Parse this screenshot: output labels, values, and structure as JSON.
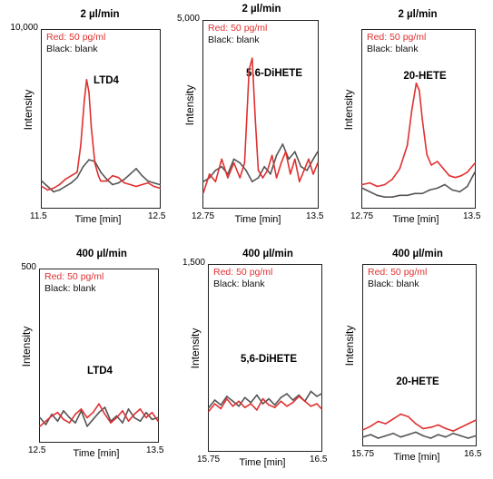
{
  "chart_data": [
    {
      "type": "line",
      "title": "2 µl/min",
      "compound": "LTD4",
      "xlabel": "Time [min]",
      "ylabel": "Intensity",
      "y_top_label": "10,000",
      "xlim": [
        11.5,
        12.5
      ],
      "x_tick_labels": [
        "11.5",
        "12.5"
      ],
      "ylim": [
        0,
        10000
      ],
      "series": [
        {
          "name": "Red: 50 pg/ml",
          "color": "#e03030",
          "x": [
            11.5,
            11.55,
            11.6,
            11.65,
            11.7,
            11.75,
            11.8,
            11.83,
            11.86,
            11.88,
            11.9,
            11.92,
            11.95,
            11.98,
            12.0,
            12.05,
            12.1,
            12.15,
            12.2,
            12.25,
            12.3,
            12.35,
            12.4,
            12.45,
            12.5
          ],
          "y": [
            1200,
            1000,
            1100,
            1300,
            1600,
            1800,
            2000,
            3500,
            6000,
            7200,
            6500,
            4500,
            2500,
            1800,
            1500,
            1500,
            1800,
            1700,
            1400,
            1300,
            1200,
            1300,
            1400,
            1200,
            1100
          ]
        },
        {
          "name": "Black: blank",
          "color": "#555555",
          "x": [
            11.5,
            11.55,
            11.6,
            11.65,
            11.7,
            11.75,
            11.8,
            11.85,
            11.9,
            11.95,
            12.0,
            12.05,
            12.1,
            12.15,
            12.2,
            12.25,
            12.3,
            12.35,
            12.4,
            12.45,
            12.5
          ],
          "y": [
            1500,
            1200,
            900,
            1000,
            1200,
            1400,
            1700,
            2300,
            2700,
            2600,
            2000,
            1600,
            1300,
            1400,
            1600,
            1900,
            2200,
            1800,
            1500,
            1400,
            1300
          ]
        }
      ]
    },
    {
      "type": "line",
      "title": "2 µl/min",
      "compound": "5,6-DiHETE",
      "xlabel": "Time [min]",
      "ylabel": "Intensity",
      "y_top_label": "5,000",
      "xlim": [
        12.75,
        13.5
      ],
      "x_tick_labels": [
        "12.75",
        "13.5"
      ],
      "ylim": [
        0,
        5000
      ],
      "series": [
        {
          "name": "Red: 50 pg/ml",
          "color": "#e03030",
          "x": [
            12.75,
            12.79,
            12.83,
            12.87,
            12.91,
            12.95,
            12.99,
            13.02,
            13.05,
            13.07,
            13.09,
            13.11,
            13.14,
            13.17,
            13.2,
            13.23,
            13.26,
            13.29,
            13.32,
            13.35,
            13.38,
            13.41,
            13.44,
            13.47,
            13.5
          ],
          "y": [
            400,
            900,
            700,
            1300,
            800,
            1200,
            800,
            1200,
            3700,
            4000,
            2400,
            1000,
            800,
            1000,
            1400,
            800,
            1200,
            1500,
            900,
            1300,
            700,
            1000,
            1300,
            900,
            1200
          ]
        },
        {
          "name": "Black: blank",
          "color": "#555555",
          "x": [
            12.75,
            12.79,
            12.83,
            12.87,
            12.91,
            12.95,
            12.99,
            13.03,
            13.07,
            13.11,
            13.15,
            13.19,
            13.23,
            13.27,
            13.31,
            13.35,
            13.39,
            13.43,
            13.47,
            13.5
          ],
          "y": [
            700,
            800,
            1000,
            1100,
            900,
            1300,
            1200,
            1000,
            700,
            800,
            1100,
            900,
            1400,
            1700,
            1300,
            1500,
            1100,
            1000,
            1300,
            1500
          ]
        }
      ]
    },
    {
      "type": "line",
      "title": "2 µl/min",
      "compound": "20-HETE",
      "xlabel": "Time [min]",
      "ylabel": "Intensity",
      "y_top_label": "",
      "xlim": [
        12.75,
        13.5
      ],
      "x_tick_labels": [
        "12.75",
        "13.5"
      ],
      "ylim": [
        0,
        10000
      ],
      "series": [
        {
          "name": "Red: 50 pg/ml",
          "color": "#e03030",
          "x": [
            12.75,
            12.8,
            12.85,
            12.9,
            12.95,
            13.0,
            13.05,
            13.08,
            13.11,
            13.13,
            13.15,
            13.18,
            13.21,
            13.25,
            13.29,
            13.33,
            13.37,
            13.41,
            13.45,
            13.5
          ],
          "y": [
            1300,
            1400,
            1200,
            1300,
            1600,
            2200,
            3500,
            5500,
            7000,
            6600,
            5000,
            3000,
            2400,
            2600,
            2200,
            1800,
            1700,
            1800,
            2000,
            2500
          ]
        },
        {
          "name": "Black: blank",
          "color": "#555555",
          "x": [
            12.75,
            12.8,
            12.85,
            12.9,
            12.95,
            13.0,
            13.05,
            13.1,
            13.15,
            13.2,
            13.25,
            13.3,
            13.35,
            13.4,
            13.45,
            13.5
          ],
          "y": [
            1100,
            900,
            700,
            600,
            600,
            700,
            700,
            800,
            800,
            1000,
            1100,
            1300,
            1000,
            900,
            1200,
            2000
          ]
        }
      ]
    },
    {
      "type": "line",
      "title": "400 µl/min",
      "compound": "LTD4",
      "xlabel": "Time [min]",
      "ylabel": "Intensity",
      "y_top_label": "500",
      "xlim": [
        12.5,
        13.5
      ],
      "x_tick_labels": [
        "12.5",
        "13.5"
      ],
      "ylim": [
        0,
        500
      ],
      "series": [
        {
          "name": "Red: 50 pg/ml",
          "color": "#e03030",
          "x": [
            12.5,
            12.55,
            12.6,
            12.65,
            12.7,
            12.75,
            12.8,
            12.85,
            12.9,
            12.95,
            13.0,
            13.05,
            13.1,
            13.15,
            13.2,
            13.25,
            13.3,
            13.35,
            13.4,
            13.45,
            13.5
          ],
          "y": [
            45,
            60,
            75,
            85,
            65,
            55,
            80,
            95,
            70,
            85,
            110,
            80,
            55,
            70,
            90,
            60,
            80,
            95,
            70,
            85,
            60
          ]
        },
        {
          "name": "Black: blank",
          "color": "#555555",
          "x": [
            12.5,
            12.55,
            12.6,
            12.65,
            12.7,
            12.75,
            12.8,
            12.85,
            12.9,
            12.95,
            13.0,
            13.05,
            13.1,
            13.15,
            13.2,
            13.25,
            13.3,
            13.35,
            13.4,
            13.45,
            13.5
          ],
          "y": [
            70,
            50,
            80,
            60,
            90,
            70,
            55,
            90,
            45,
            65,
            85,
            100,
            60,
            75,
            55,
            95,
            70,
            60,
            85,
            65,
            70
          ]
        }
      ]
    },
    {
      "type": "line",
      "title": "400 µl/min",
      "compound": "5,6-DiHETE",
      "xlabel": "Time [min]",
      "ylabel": "Intensity",
      "y_top_label": "1,500",
      "xlim": [
        15.75,
        16.5
      ],
      "x_tick_labels": [
        "15.75",
        "16.5"
      ],
      "ylim": [
        0,
        1500
      ],
      "series": [
        {
          "name": "Red: 50 pg/ml",
          "color": "#e03030",
          "x": [
            15.75,
            15.79,
            15.83,
            15.87,
            15.91,
            15.95,
            15.99,
            16.03,
            16.07,
            16.11,
            16.15,
            16.19,
            16.23,
            16.27,
            16.31,
            16.35,
            16.39,
            16.43,
            16.47,
            16.5
          ],
          "y": [
            320,
            380,
            340,
            420,
            360,
            400,
            350,
            380,
            330,
            420,
            370,
            350,
            400,
            360,
            390,
            440,
            400,
            360,
            380,
            340
          ]
        },
        {
          "name": "Black: blank",
          "color": "#555555",
          "x": [
            15.75,
            15.79,
            15.83,
            15.87,
            15.91,
            15.95,
            15.99,
            16.03,
            16.07,
            16.11,
            16.15,
            16.19,
            16.23,
            16.27,
            16.31,
            16.35,
            16.39,
            16.43,
            16.47,
            16.5
          ],
          "y": [
            350,
            410,
            370,
            440,
            400,
            360,
            430,
            390,
            450,
            380,
            420,
            370,
            430,
            460,
            410,
            450,
            400,
            480,
            440,
            460
          ]
        }
      ]
    },
    {
      "type": "line",
      "title": "400 µl/min",
      "compound": "20-HETE",
      "xlabel": "Time [min]",
      "ylabel": "Intensity",
      "y_top_label": "",
      "xlim": [
        15.75,
        16.5
      ],
      "x_tick_labels": [
        "15.75",
        "16.5"
      ],
      "ylim": [
        0,
        1500
      ],
      "series": [
        {
          "name": "Red: 50 pg/ml",
          "color": "#e03030",
          "x": [
            15.75,
            15.8,
            15.85,
            15.9,
            15.95,
            16.0,
            16.05,
            16.1,
            16.15,
            16.2,
            16.25,
            16.3,
            16.35,
            16.4,
            16.45,
            16.5
          ],
          "y": [
            130,
            160,
            200,
            180,
            220,
            260,
            240,
            180,
            140,
            150,
            170,
            140,
            120,
            150,
            180,
            210
          ]
        },
        {
          "name": "Black: blank",
          "color": "#555555",
          "x": [
            15.75,
            15.8,
            15.85,
            15.9,
            15.95,
            16.0,
            16.05,
            16.1,
            16.15,
            16.2,
            16.25,
            16.3,
            16.35,
            16.4,
            16.45,
            16.5
          ],
          "y": [
            70,
            90,
            60,
            80,
            100,
            70,
            90,
            110,
            80,
            60,
            90,
            70,
            100,
            80,
            60,
            80
          ]
        }
      ]
    }
  ]
}
